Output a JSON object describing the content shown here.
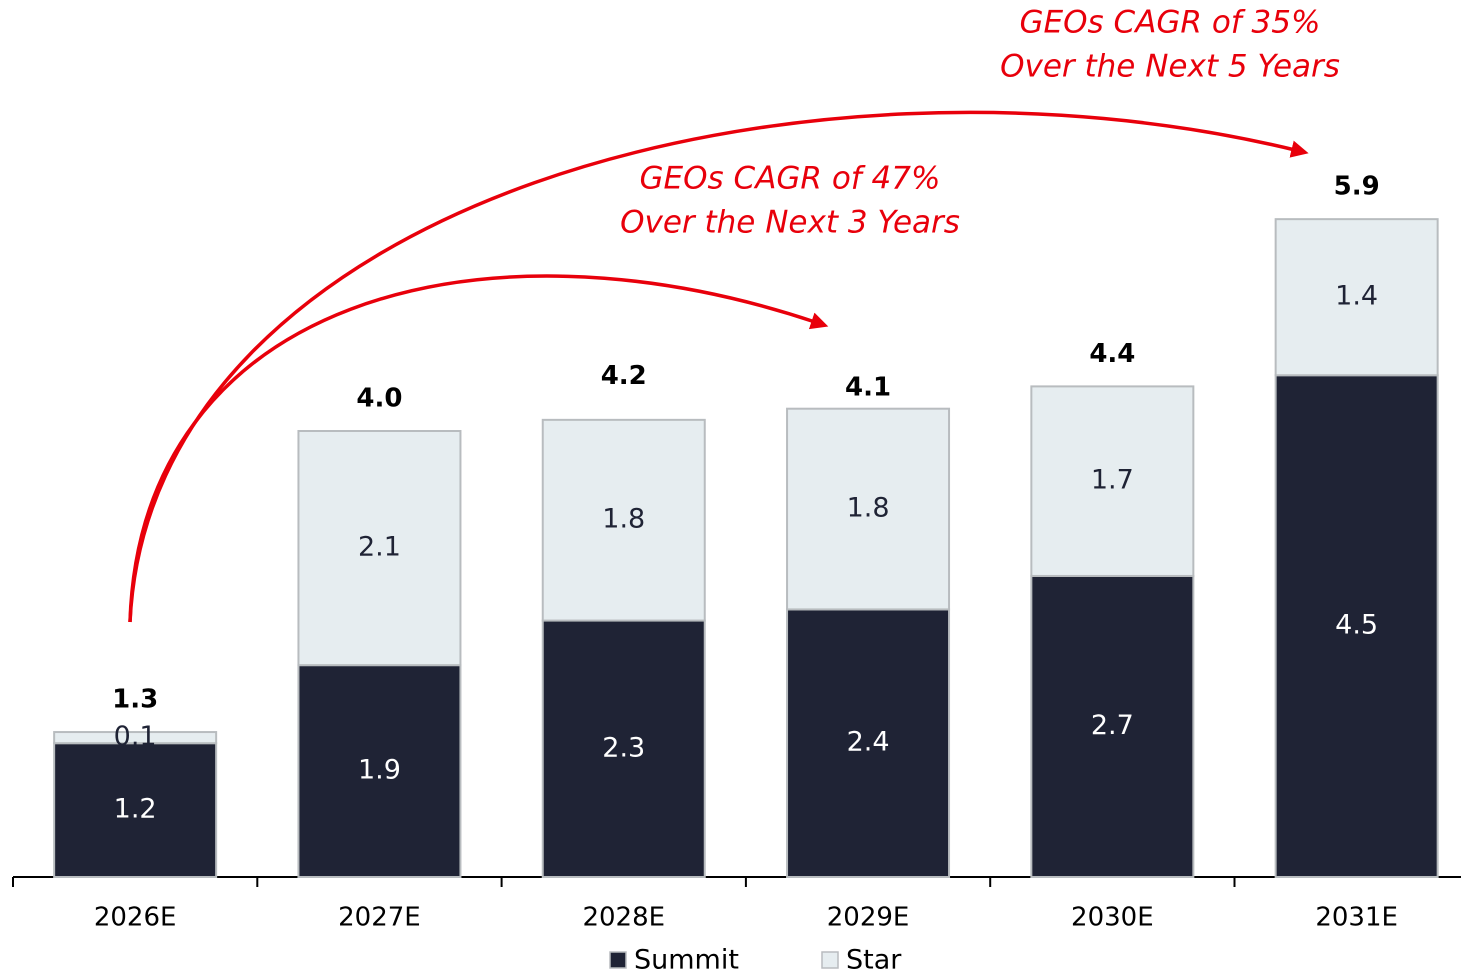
{
  "chart_data": {
    "type": "stacked-bar",
    "categories": [
      "2026E",
      "2027E",
      "2028E",
      "2029E",
      "2030E",
      "2031E"
    ],
    "series": [
      {
        "name": "Summit",
        "color": "#1f2335",
        "values": [
          1.2,
          1.9,
          2.3,
          2.4,
          2.7,
          4.5
        ]
      },
      {
        "name": "Star",
        "color": "#e6edf0",
        "values": [
          0.1,
          2.1,
          1.8,
          1.8,
          1.7,
          1.4
        ]
      }
    ],
    "totals": {
      "values": [
        1.3,
        4,
        4.2,
        4.1,
        4.4,
        5.9
      ],
      "value_labels": [
        "1.3",
        "4.0",
        "4.2",
        "4.1",
        "4.4",
        "5.9"
      ]
    },
    "annotations": [
      {
        "lines": [
          "GEOs CAGR of 35%",
          "Over the Next 5 Years"
        ],
        "color": "#e8000b"
      },
      {
        "lines": [
          "GEOs CAGR of 47%",
          "Over the Next 3 Years"
        ],
        "color": "#e8000b"
      }
    ],
    "legend": "bottom"
  }
}
